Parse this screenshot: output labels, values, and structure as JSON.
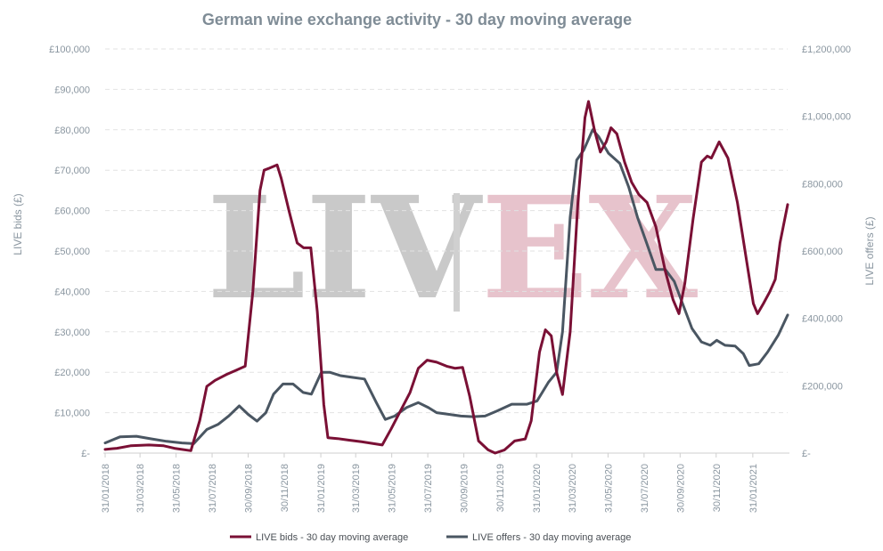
{
  "chart_data": {
    "type": "line",
    "title": "German wine exchange activity - 30 day moving average",
    "ylabel_left": "LIVE bids (£)",
    "ylabel_right": "LIVE offers (£)",
    "ylim_left": [
      0,
      100000
    ],
    "ylim_right": [
      0,
      1200000
    ],
    "y_ticks_left": [
      "£-",
      "£10,000",
      "£20,000",
      "£30,000",
      "£40,000",
      "£50,000",
      "£60,000",
      "£70,000",
      "£80,000",
      "£90,000",
      "£100,000"
    ],
    "y_ticks_right": [
      "£-",
      "£200,000",
      "£400,000",
      "£600,000",
      "£800,000",
      "£1,000,000",
      "£1,200,000"
    ],
    "x_ticks": [
      "31/01/2018",
      "31/03/2018",
      "31/05/2018",
      "31/07/2018",
      "30/09/2018",
      "30/11/2018",
      "31/01/2019",
      "31/03/2019",
      "31/05/2019",
      "31/07/2019",
      "30/09/2019",
      "30/11/2019",
      "31/01/2020",
      "31/03/2020",
      "31/05/2020",
      "31/07/2020",
      "30/09/2020",
      "30/11/2020",
      "31/01/2021"
    ],
    "x_range": [
      "2018-01-31",
      "2021-03-31"
    ],
    "grid": true,
    "legend_position": "bottom",
    "series": [
      {
        "name": "LIVE bids - 30 day moving average",
        "axis": "left",
        "color": "#7a1035",
        "points": [
          [
            "2018-01-31",
            900
          ],
          [
            "2018-02-20",
            1200
          ],
          [
            "2018-03-15",
            1800
          ],
          [
            "2018-04-15",
            2000
          ],
          [
            "2018-05-10",
            1800
          ],
          [
            "2018-05-28",
            1200
          ],
          [
            "2018-06-25",
            600
          ],
          [
            "2018-07-10",
            8000
          ],
          [
            "2018-07-22",
            16500
          ],
          [
            "2018-08-05",
            18000
          ],
          [
            "2018-08-25",
            19500
          ],
          [
            "2018-09-10",
            20500
          ],
          [
            "2018-09-25",
            21500
          ],
          [
            "2018-10-08",
            40000
          ],
          [
            "2018-10-20",
            65000
          ],
          [
            "2018-10-27",
            70000
          ],
          [
            "2018-11-05",
            70500
          ],
          [
            "2018-11-18",
            71300
          ],
          [
            "2018-11-25",
            68000
          ],
          [
            "2018-12-08",
            60000
          ],
          [
            "2018-12-22",
            52000
          ],
          [
            "2019-01-02",
            50800
          ],
          [
            "2019-01-14",
            50800
          ],
          [
            "2019-01-25",
            35000
          ],
          [
            "2019-02-05",
            12000
          ],
          [
            "2019-02-12",
            3800
          ],
          [
            "2019-02-28",
            3600
          ],
          [
            "2019-03-20",
            3200
          ],
          [
            "2019-04-10",
            2800
          ],
          [
            "2019-04-28",
            2400
          ],
          [
            "2019-05-15",
            2000
          ],
          [
            "2019-05-30",
            6000
          ],
          [
            "2019-06-15",
            10500
          ],
          [
            "2019-07-01",
            15000
          ],
          [
            "2019-07-15",
            21000
          ],
          [
            "2019-07-30",
            23000
          ],
          [
            "2019-08-15",
            22500
          ],
          [
            "2019-09-01",
            21500
          ],
          [
            "2019-09-15",
            21000
          ],
          [
            "2019-09-28",
            21200
          ],
          [
            "2019-10-10",
            14000
          ],
          [
            "2019-10-25",
            3000
          ],
          [
            "2019-11-10",
            800
          ],
          [
            "2019-11-22",
            0
          ],
          [
            "2019-12-08",
            800
          ],
          [
            "2019-12-25",
            3000
          ],
          [
            "2020-01-12",
            3500
          ],
          [
            "2020-01-22",
            8000
          ],
          [
            "2020-02-05",
            25000
          ],
          [
            "2020-02-15",
            30500
          ],
          [
            "2020-02-25",
            29000
          ],
          [
            "2020-03-05",
            20000
          ],
          [
            "2020-03-15",
            14500
          ],
          [
            "2020-03-28",
            30000
          ],
          [
            "2020-04-10",
            62000
          ],
          [
            "2020-04-22",
            83000
          ],
          [
            "2020-04-28",
            87000
          ],
          [
            "2020-05-08",
            80000
          ],
          [
            "2020-05-18",
            74500
          ],
          [
            "2020-05-28",
            77000
          ],
          [
            "2020-06-05",
            80500
          ],
          [
            "2020-06-15",
            79000
          ],
          [
            "2020-06-28",
            72000
          ],
          [
            "2020-07-10",
            67000
          ],
          [
            "2020-07-22",
            64000
          ],
          [
            "2020-08-05",
            62000
          ],
          [
            "2020-08-20",
            56000
          ],
          [
            "2020-09-05",
            45000
          ],
          [
            "2020-09-18",
            38000
          ],
          [
            "2020-09-28",
            34500
          ],
          [
            "2020-10-08",
            42000
          ],
          [
            "2020-10-22",
            58000
          ],
          [
            "2020-11-05",
            72000
          ],
          [
            "2020-11-15",
            73500
          ],
          [
            "2020-11-22",
            73000
          ],
          [
            "2020-12-05",
            77000
          ],
          [
            "2020-12-20",
            73000
          ],
          [
            "2021-01-05",
            62000
          ],
          [
            "2021-01-20",
            48000
          ],
          [
            "2021-02-01",
            37000
          ],
          [
            "2021-02-08",
            34500
          ],
          [
            "2021-02-18",
            37000
          ],
          [
            "2021-03-01",
            40000
          ],
          [
            "2021-03-10",
            43000
          ],
          [
            "2021-03-18",
            52000
          ],
          [
            "2021-03-31",
            61500
          ]
        ]
      },
      {
        "name": "LIVE offers - 30 day moving average",
        "axis": "right",
        "color": "#4a5662",
        "points": [
          [
            "2018-01-31",
            30000
          ],
          [
            "2018-02-25",
            48000
          ],
          [
            "2018-03-25",
            50000
          ],
          [
            "2018-04-20",
            42000
          ],
          [
            "2018-05-15",
            35000
          ],
          [
            "2018-06-10",
            30000
          ],
          [
            "2018-06-30",
            28000
          ],
          [
            "2018-07-22",
            70000
          ],
          [
            "2018-08-10",
            85000
          ],
          [
            "2018-08-28",
            110000
          ],
          [
            "2018-09-15",
            140000
          ],
          [
            "2018-09-30",
            115000
          ],
          [
            "2018-10-15",
            95000
          ],
          [
            "2018-10-30",
            120000
          ],
          [
            "2018-11-12",
            175000
          ],
          [
            "2018-11-28",
            205000
          ],
          [
            "2018-12-15",
            205000
          ],
          [
            "2019-01-01",
            180000
          ],
          [
            "2019-01-15",
            175000
          ],
          [
            "2019-02-01",
            240000
          ],
          [
            "2019-02-15",
            240000
          ],
          [
            "2019-03-05",
            230000
          ],
          [
            "2019-03-25",
            225000
          ],
          [
            "2019-04-15",
            220000
          ],
          [
            "2019-05-05",
            150000
          ],
          [
            "2019-05-20",
            100000
          ],
          [
            "2019-06-05",
            110000
          ],
          [
            "2019-06-25",
            135000
          ],
          [
            "2019-07-15",
            150000
          ],
          [
            "2019-08-01",
            135000
          ],
          [
            "2019-08-15",
            120000
          ],
          [
            "2019-09-05",
            115000
          ],
          [
            "2019-09-25",
            110000
          ],
          [
            "2019-10-15",
            108000
          ],
          [
            "2019-11-05",
            110000
          ],
          [
            "2019-11-25",
            125000
          ],
          [
            "2019-12-20",
            145000
          ],
          [
            "2020-01-15",
            145000
          ],
          [
            "2020-02-01",
            155000
          ],
          [
            "2020-02-20",
            210000
          ],
          [
            "2020-03-05",
            240000
          ],
          [
            "2020-03-15",
            360000
          ],
          [
            "2020-03-28",
            700000
          ],
          [
            "2020-04-08",
            870000
          ],
          [
            "2020-04-20",
            900000
          ],
          [
            "2020-05-05",
            960000
          ],
          [
            "2020-05-15",
            940000
          ],
          [
            "2020-06-01",
            890000
          ],
          [
            "2020-06-20",
            860000
          ],
          [
            "2020-07-05",
            790000
          ],
          [
            "2020-07-20",
            700000
          ],
          [
            "2020-08-05",
            620000
          ],
          [
            "2020-08-20",
            545000
          ],
          [
            "2020-09-05",
            545000
          ],
          [
            "2020-09-20",
            510000
          ],
          [
            "2020-10-05",
            440000
          ],
          [
            "2020-10-20",
            370000
          ],
          [
            "2020-11-05",
            330000
          ],
          [
            "2020-11-20",
            320000
          ],
          [
            "2020-12-01",
            335000
          ],
          [
            "2020-12-15",
            320000
          ],
          [
            "2021-01-01",
            318000
          ],
          [
            "2021-01-15",
            295000
          ],
          [
            "2021-01-25",
            260000
          ],
          [
            "2021-02-10",
            265000
          ],
          [
            "2021-02-25",
            300000
          ],
          [
            "2021-03-15",
            350000
          ],
          [
            "2021-03-31",
            410000
          ]
        ]
      }
    ]
  },
  "watermark": {
    "left": "LIV",
    "right": "EX"
  }
}
